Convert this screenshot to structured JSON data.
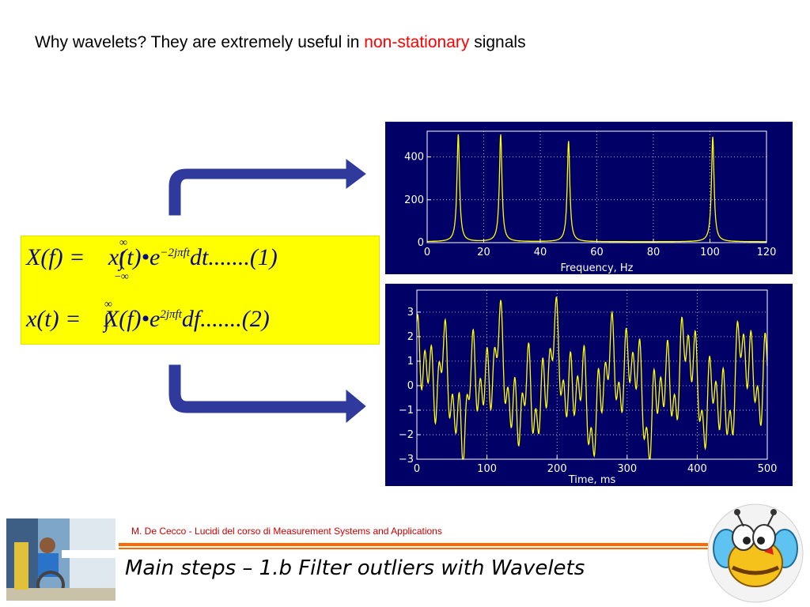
{
  "slide": {
    "headline_pre": "Why wavelets? They are extremely useful in ",
    "headline_highlight": "non-stationary",
    "headline_post": " signals",
    "credit": "M. De Cecco - Lucidi del corso di Measurement Systems and Applications",
    "title": "Main steps – 1.b Filter outliers with Wavelets"
  },
  "formula": {
    "eq1_lhs": "X(f) = ",
    "eq1_rhs": "x(t)•e",
    "eq1_exp": "−2jπft",
    "eq1_tail": "dt.......(1)",
    "eq2_lhs": "x(t) = ",
    "eq2_rhs": "X(f)•e",
    "eq2_exp": "2jπft",
    "eq2_tail": "df.......(2)",
    "upper_limit": "∞",
    "lower_limit": "−∞"
  },
  "colors": {
    "plot_bg": "#000066",
    "trace": "#ffff00",
    "axes": "#ffffff",
    "arrow_fill": "#2f3a9c",
    "formula_bg": "#ffff00"
  },
  "chart_data": [
    {
      "type": "line",
      "xlabel": "Frequency, Hz",
      "ylabel": "",
      "xlim": [
        0,
        120
      ],
      "ylim": [
        0,
        520
      ],
      "xticks": [
        0,
        20,
        40,
        60,
        80,
        100,
        120
      ],
      "yticks": [
        0,
        200,
        400
      ],
      "grid": true,
      "peaks": [
        {
          "x": 11,
          "y": 500
        },
        {
          "x": 26,
          "y": 500
        },
        {
          "x": 50,
          "y": 470
        },
        {
          "x": 101,
          "y": 490
        }
      ]
    },
    {
      "type": "line",
      "xlabel": "Time, ms",
      "ylabel": "",
      "xlim": [
        0,
        500
      ],
      "ylim": [
        -3,
        3.9
      ],
      "xticks": [
        0,
        100,
        200,
        300,
        400,
        500
      ],
      "yticks": [
        -3,
        -2,
        -1,
        0,
        1,
        2,
        3
      ],
      "grid": true,
      "components_hz": [
        11,
        26,
        50,
        101
      ]
    }
  ]
}
